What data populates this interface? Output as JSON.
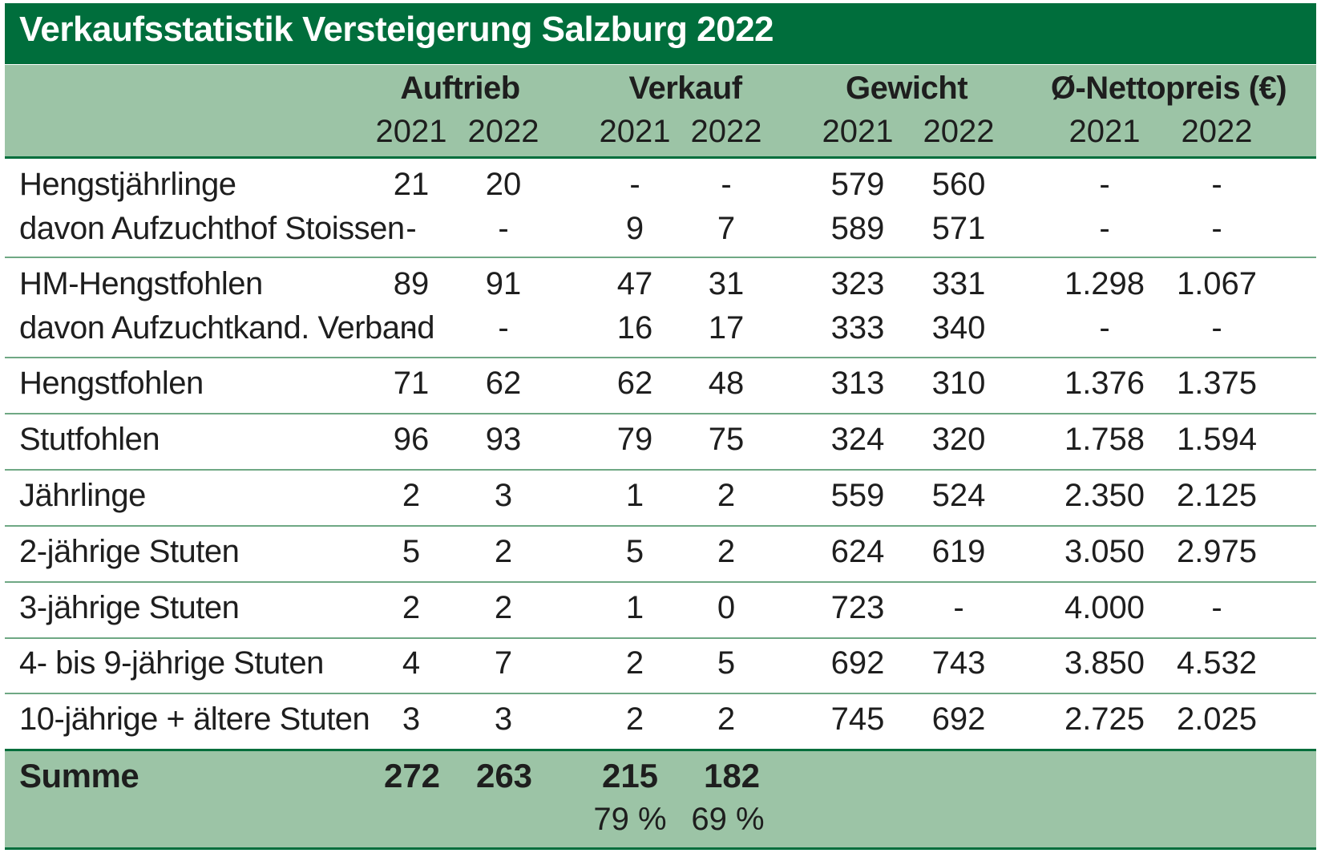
{
  "chart_data": {
    "type": "table",
    "title": "Verkaufsstatistik Versteigerung Salzburg 2022",
    "groups": [
      "Auftrieb",
      "Verkauf",
      "Gewicht",
      "Ø-Nettopreis (€)"
    ],
    "years": [
      "2021",
      "2022",
      "2021",
      "2022",
      "2021",
      "2022",
      "2021",
      "2022"
    ],
    "rows": [
      {
        "label": "Hengstjährlinge",
        "values": [
          "21",
          "20",
          "-",
          "-",
          "579",
          "560",
          "-",
          "-"
        ]
      },
      {
        "label": "davon Aufzuchthof Stoissen",
        "values": [
          "-",
          "-",
          "9",
          "7",
          "589",
          "571",
          "-",
          "-"
        ]
      },
      {
        "label": "HM-Hengstfohlen",
        "values": [
          "89",
          "91",
          "47",
          "31",
          "323",
          "331",
          "1.298",
          "1.067"
        ]
      },
      {
        "label": "davon Aufzuchtkand. Verband",
        "values": [
          "-",
          "-",
          "16",
          "17",
          "333",
          "340",
          "-",
          "-"
        ]
      },
      {
        "label": "Hengstfohlen",
        "values": [
          "71",
          "62",
          "62",
          "48",
          "313",
          "310",
          "1.376",
          "1.375"
        ]
      },
      {
        "label": "Stutfohlen",
        "values": [
          "96",
          "93",
          "79",
          "75",
          "324",
          "320",
          "1.758",
          "1.594"
        ]
      },
      {
        "label": "Jährlinge",
        "values": [
          "2",
          "3",
          "1",
          "2",
          "559",
          "524",
          "2.350",
          "2.125"
        ]
      },
      {
        "label": "2-jährige Stuten",
        "values": [
          "5",
          "2",
          "5",
          "2",
          "624",
          "619",
          "3.050",
          "2.975"
        ]
      },
      {
        "label": "3-jährige Stuten",
        "values": [
          "2",
          "2",
          "1",
          "0",
          "723",
          "-",
          "4.000",
          "-"
        ]
      },
      {
        "label": "4- bis 9-jährige Stuten",
        "values": [
          "4",
          "7",
          "2",
          "5",
          "692",
          "743",
          "3.850",
          "4.532"
        ]
      },
      {
        "label": "10-jährige + ältere Stuten",
        "values": [
          "3",
          "3",
          "2",
          "2",
          "745",
          "692",
          "2.725",
          "2.025"
        ]
      }
    ],
    "summary": {
      "label": "Summe",
      "values": [
        "272",
        "263",
        "215",
        "182"
      ],
      "percentages": [
        "79 %",
        "69 %"
      ]
    }
  },
  "colors": {
    "title_background": "#006e3c",
    "header_background": "#9cc4a6",
    "row_separator": "#6fa884",
    "text": "#1e1e1e",
    "title_text": "#ffffff"
  }
}
